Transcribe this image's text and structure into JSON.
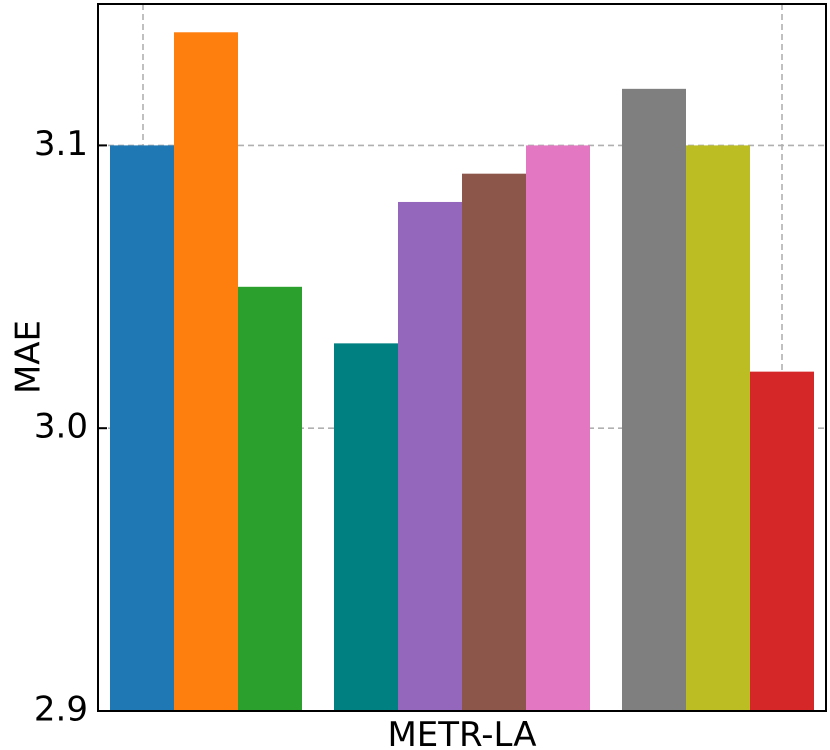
{
  "chart_data": {
    "type": "bar",
    "title": "",
    "xlabel": "METR-LA",
    "ylabel": "MAE",
    "ylim": [
      2.9,
      3.15
    ],
    "yticks": [
      2.9,
      3.0,
      3.1
    ],
    "ytick_labels": [
      "2.9",
      "3.0",
      "3.1"
    ],
    "grid": true,
    "legend": "none",
    "groups": [
      {
        "bars": [
          {
            "value": 3.1,
            "color": "#1f77b4"
          },
          {
            "value": 3.14,
            "color": "#ff7f0e"
          },
          {
            "value": 3.05,
            "color": "#2ca02c"
          }
        ]
      },
      {
        "bars": [
          {
            "value": 3.03,
            "color": "#008080"
          },
          {
            "value": 3.08,
            "color": "#9467bd"
          },
          {
            "value": 3.09,
            "color": "#8c564b"
          },
          {
            "value": 3.1,
            "color": "#e377c2"
          }
        ]
      },
      {
        "bars": [
          {
            "value": 3.12,
            "color": "#7f7f7f"
          },
          {
            "value": 3.1,
            "color": "#bcbd22"
          },
          {
            "value": 3.02,
            "color": "#d62728"
          }
        ]
      }
    ]
  }
}
